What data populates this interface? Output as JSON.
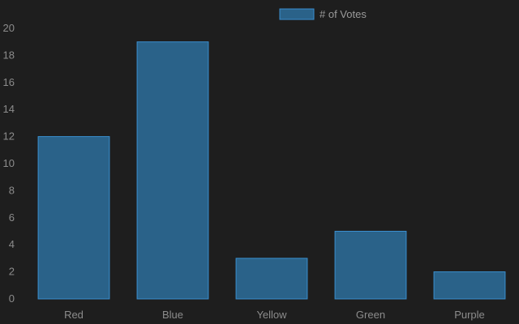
{
  "colors": {
    "background": "#1e1e1e",
    "bar_fill": "#2a6289",
    "bar_stroke": "#3a8fcf",
    "label": "#8c8c8c"
  },
  "chart_data": {
    "type": "bar",
    "categories": [
      "Red",
      "Blue",
      "Yellow",
      "Green",
      "Purple"
    ],
    "series": [
      {
        "name": "# of Votes",
        "values": [
          12,
          19,
          3,
          5,
          2
        ]
      }
    ],
    "ylim": [
      0,
      20
    ],
    "yticks": [
      0,
      2,
      4,
      6,
      8,
      10,
      12,
      14,
      16,
      18,
      20
    ],
    "grid": false,
    "legend_position": "top-center"
  }
}
